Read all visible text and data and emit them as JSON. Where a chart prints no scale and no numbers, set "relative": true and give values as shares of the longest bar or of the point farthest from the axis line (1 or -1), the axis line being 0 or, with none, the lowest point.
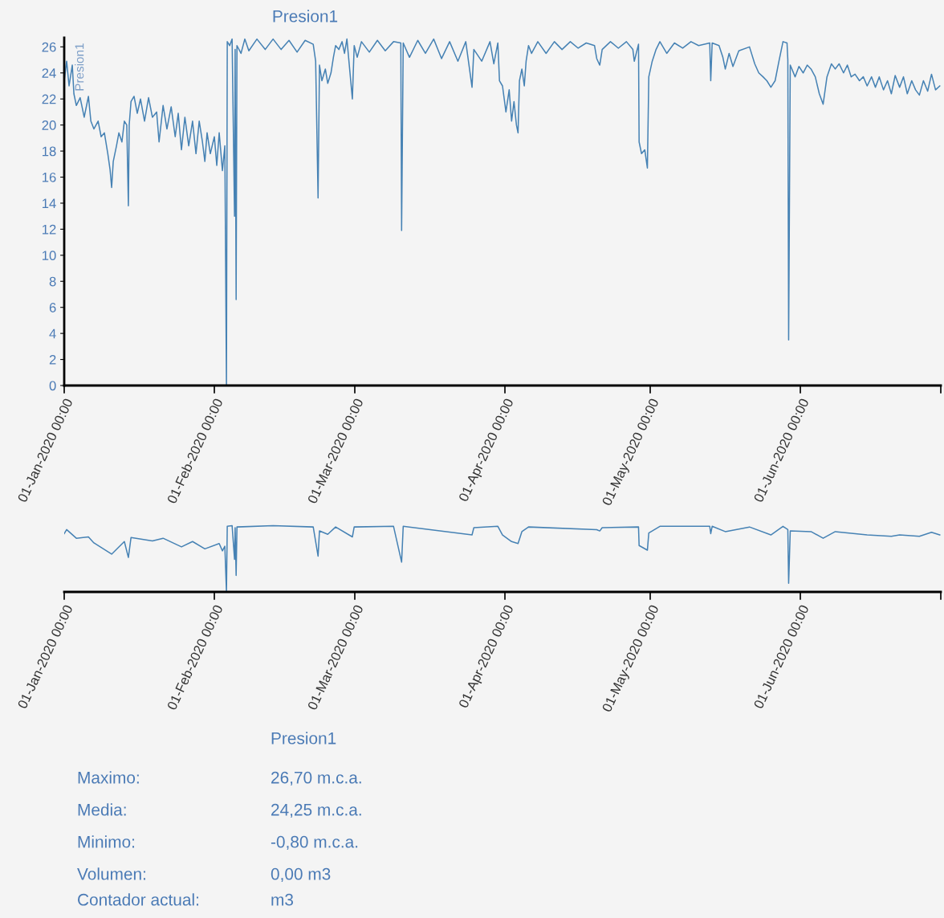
{
  "chart_data": [
    {
      "type": "line",
      "title": "Presion1",
      "ylabel": "Presion1",
      "grid": false,
      "legend": false,
      "marker": "none",
      "line_style": "solid",
      "xlim": [
        "2020-01-01",
        "2020-06-30"
      ],
      "ylim": [
        0,
        26.7
      ],
      "xticks": [
        {
          "value": "2020-01-01",
          "label": "01-Jan-2020 00:00"
        },
        {
          "value": "2020-02-01",
          "label": "01-Feb-2020 00:00"
        },
        {
          "value": "2020-03-01",
          "label": "01-Mar-2020 00:00"
        },
        {
          "value": "2020-04-01",
          "label": "01-Apr-2020 00:00"
        },
        {
          "value": "2020-05-01",
          "label": "01-May-2020 00:00"
        },
        {
          "value": "2020-06-01",
          "label": "01-Jun-2020 00:00"
        },
        {
          "value": "2020-06-30",
          "label": null
        }
      ],
      "yticks": [
        0,
        2,
        4,
        6,
        8,
        10,
        12,
        14,
        16,
        18,
        20,
        22,
        24,
        26
      ],
      "series": [
        {
          "color": "#4682b4",
          "x": [
            "2020-01-01T00:00",
            "2020-01-01T12:00",
            "2020-01-02T00:00",
            "2020-01-02T16:00",
            "2020-01-03T00:00",
            "2020-01-03T12:00",
            "2020-01-04T07:00",
            "2020-01-05T03:00",
            "2020-01-06T00:00",
            "2020-01-06T12:00",
            "2020-01-07T03:00",
            "2020-01-08T00:00",
            "2020-01-08T15:00",
            "2020-01-09T07:00",
            "2020-01-10T00:00",
            "2020-01-10T11:00",
            "2020-01-10T19:00",
            "2020-01-11T03:00",
            "2020-01-11T19:00",
            "2020-01-12T07:00",
            "2020-01-12T22:00",
            "2020-01-13T10:00",
            "2020-01-13T22:00",
            "2020-01-14T06:00",
            "2020-01-14T10:00",
            "2020-01-14T19:00",
            "2020-01-15T10:00",
            "2020-01-16T02:00",
            "2020-01-16T18:00",
            "2020-01-17T14:00",
            "2020-01-18T10:00",
            "2020-01-19T05:00",
            "2020-01-20T02:00",
            "2020-01-20T14:00",
            "2020-01-21T10:00",
            "2020-01-22T05:00",
            "2020-01-23T02:00",
            "2020-01-23T22:00",
            "2020-01-24T13:00",
            "2020-01-25T05:00",
            "2020-01-25T22:00",
            "2020-01-26T17:00",
            "2020-01-27T12:00",
            "2020-01-28T05:00",
            "2020-01-28T21:00",
            "2020-01-29T13:00",
            "2020-01-30T01:00",
            "2020-01-30T12:00",
            "2020-01-31T04:00",
            "2020-02-01T00:00",
            "2020-02-01T12:00",
            "2020-02-02T00:00",
            "2020-02-02T16:00",
            "2020-02-03T04:00",
            "2020-02-03T12:00",
            "2020-02-03T16:00",
            "2020-02-04T04:00",
            "2020-02-04T16:00",
            "2020-02-05T04:00",
            "2020-02-05T07:00",
            "2020-02-05T12:00",
            "2020-02-05T16:00",
            "2020-02-06T12:00",
            "2020-02-07T07:00",
            "2020-02-08T03:00",
            "2020-02-09T19:00",
            "2020-02-11T12:00",
            "2020-02-13T03:00",
            "2020-02-14T19:00",
            "2020-02-16T10:00",
            "2020-02-18T02:00",
            "2020-02-19T18:00",
            "2020-02-21T10:00",
            "2020-02-21T22:00",
            "2020-02-22T10:00",
            "2020-02-22T17:00",
            "2020-02-23T05:00",
            "2020-02-23T22:00",
            "2020-02-24T10:00",
            "2020-02-25T02:00",
            "2020-02-25T14:00",
            "2020-02-26T01:00",
            "2020-02-26T17:00",
            "2020-02-27T09:00",
            "2020-02-27T21:00",
            "2020-02-28T09:00",
            "2020-02-29T12:00",
            "2020-02-29T21:00",
            "2020-03-01T12:00",
            "2020-03-02T09:00",
            "2020-03-04T00:00",
            "2020-03-05T16:00",
            "2020-03-07T07:00",
            "2020-03-09T00:00",
            "2020-03-10T12:00",
            "2020-03-10T16:00",
            "2020-03-11T00:00",
            "2020-03-12T07:00",
            "2020-03-14T00:00",
            "2020-03-15T14:00",
            "2020-03-17T07:00",
            "2020-03-18T22:00",
            "2020-03-20T14:00",
            "2020-03-22T07:00",
            "2020-03-23T22:00",
            "2020-03-25T05:00",
            "2020-03-25T14:00",
            "2020-03-27T05:00",
            "2020-03-28T22:00",
            "2020-03-29T17:00",
            "2020-03-30T13:00",
            "2020-03-30T21:00",
            "2020-03-31T12:00",
            "2020-04-01T05:00",
            "2020-04-01T21:00",
            "2020-04-02T09:00",
            "2020-04-02T21:00",
            "2020-04-03T09:00",
            "2020-04-03T17:00",
            "2020-04-04T00:00",
            "2020-04-04T12:00",
            "2020-04-05T00:00",
            "2020-04-05T09:00",
            "2020-04-05T21:00",
            "2020-04-06T12:00",
            "2020-04-07T19:00",
            "2020-04-09T12:00",
            "2020-04-11T05:00",
            "2020-04-12T19:00",
            "2020-04-14T12:00",
            "2020-04-16T03:00",
            "2020-04-17T19:00",
            "2020-04-19T12:00",
            "2020-04-19T23:00",
            "2020-04-20T14:00",
            "2020-04-21T02:00",
            "2020-04-22T19:00",
            "2020-04-24T10:00",
            "2020-04-26T02:00",
            "2020-04-27T10:00",
            "2020-04-27T17:00",
            "2020-04-28T14:00",
            "2020-04-28T17:00",
            "2020-04-29T05:00",
            "2020-04-29T21:00",
            "2020-04-30T10:00",
            "2020-04-30T17:00",
            "2020-05-01T10:00",
            "2020-05-02T05:00",
            "2020-05-03T00:00",
            "2020-05-04T10:00",
            "2020-05-06T00:00",
            "2020-05-07T17:00",
            "2020-05-09T10:00",
            "2020-05-11T00:00",
            "2020-05-13T07:00",
            "2020-05-13T12:00",
            "2020-05-13T19:00",
            "2020-05-15T05:00",
            "2020-05-16T00:00",
            "2020-05-16T12:00",
            "2020-05-17T07:00",
            "2020-05-18T02:00",
            "2020-05-19T07:00",
            "2020-05-21T12:00",
            "2020-05-22T14:00",
            "2020-05-23T10:00",
            "2020-05-24T07:00",
            "2020-05-25T02:00",
            "2020-05-25T22:00",
            "2020-05-26T19:00",
            "2020-05-27T14:00",
            "2020-05-28T10:00",
            "2020-05-29T06:00",
            "2020-05-29T10:00",
            "2020-05-29T14:00",
            "2020-05-29T22:00",
            "2020-05-30T22:00",
            "2020-05-31T17:00",
            "2020-06-01T14:00",
            "2020-06-02T10:00",
            "2020-06-03T05:00",
            "2020-06-04T02:00",
            "2020-06-04T22:00",
            "2020-06-05T17:00",
            "2020-06-06T12:00",
            "2020-06-07T10:00",
            "2020-06-08T05:00",
            "2020-06-09T00:00",
            "2020-06-09T22:00",
            "2020-06-10T17:00",
            "2020-06-11T12:00",
            "2020-06-12T07:00",
            "2020-06-13T05:00",
            "2020-06-14T00:00",
            "2020-06-14T19:00",
            "2020-06-15T17:00",
            "2020-06-16T12:00",
            "2020-06-17T07:00",
            "2020-06-18T04:00",
            "2020-06-19T00:00",
            "2020-06-19T19:00",
            "2020-06-20T14:00",
            "2020-06-21T12:00",
            "2020-06-22T07:00",
            "2020-06-23T02:00",
            "2020-06-24T00:00",
            "2020-06-24T19:00",
            "2020-06-25T14:00",
            "2020-06-26T10:00",
            "2020-06-27T07:00",
            "2020-06-28T02:00",
            "2020-06-28T22:00",
            "2020-06-29T19:00"
          ],
          "values": [
            23.4,
            24.9,
            23.0,
            24.6,
            22.4,
            21.5,
            22.1,
            20.6,
            22.2,
            20.3,
            19.7,
            20.3,
            19.1,
            19.4,
            17.8,
            16.6,
            15.2,
            17.2,
            18.4,
            19.4,
            18.7,
            20.3,
            20.0,
            13.8,
            20.0,
            21.8,
            22.2,
            20.9,
            22.0,
            20.3,
            22.1,
            20.6,
            21.0,
            18.7,
            21.5,
            19.7,
            21.4,
            19.1,
            20.9,
            18.1,
            20.6,
            18.4,
            20.3,
            17.8,
            20.3,
            18.7,
            17.2,
            19.4,
            17.8,
            19.1,
            16.9,
            19.4,
            16.5,
            18.4,
            0,
            26.4,
            26.1,
            26.6,
            13.0,
            25.8,
            6.6,
            26.1,
            25.5,
            26.6,
            25.7,
            26.6,
            25.8,
            26.6,
            25.8,
            26.5,
            25.6,
            26.5,
            26.2,
            24.9,
            14.4,
            24.6,
            23.4,
            24.3,
            23.2,
            24.0,
            25.2,
            26.1,
            25.8,
            26.4,
            25.5,
            26.6,
            22.0,
            26.1,
            25.2,
            26.4,
            25.6,
            26.5,
            25.7,
            26.4,
            26.3,
            11.9,
            26.3,
            25.2,
            26.5,
            25.5,
            26.6,
            25.1,
            26.4,
            24.9,
            26.4,
            22.9,
            25.8,
            24.9,
            26.4,
            24.7,
            26.3,
            23.4,
            23.0,
            21.0,
            22.7,
            20.3,
            21.8,
            20.0,
            19.4,
            23.4,
            24.3,
            23.0,
            24.9,
            26.1,
            25.5,
            26.4,
            25.5,
            26.4,
            25.8,
            26.4,
            25.9,
            26.3,
            26.1,
            25.1,
            24.6,
            25.8,
            26.4,
            25.9,
            26.4,
            25.8,
            24.9,
            26.2,
            18.7,
            17.8,
            18.1,
            16.7,
            23.7,
            24.9,
            25.8,
            26.4,
            25.5,
            26.3,
            25.9,
            26.4,
            26.1,
            26.3,
            23.4,
            26.3,
            26.1,
            25.2,
            24.3,
            25.5,
            24.5,
            25.7,
            26.0,
            24.7,
            24.0,
            23.7,
            23.4,
            22.9,
            23.4,
            24.9,
            26.4,
            26.3,
            25.0,
            3.5,
            24.6,
            23.7,
            24.5,
            24.0,
            24.6,
            24.3,
            23.7,
            22.4,
            21.6,
            23.7,
            24.7,
            24.3,
            24.7,
            24.0,
            24.6,
            23.7,
            23.9,
            23.4,
            23.7,
            23.0,
            23.7,
            22.9,
            23.7,
            22.7,
            23.4,
            22.4,
            23.8,
            22.9,
            23.7,
            22.4,
            23.4,
            22.7,
            22.3,
            23.4,
            22.6,
            23.9,
            22.7,
            23.0
          ]
        }
      ]
    },
    {
      "type": "line",
      "relative": true,
      "grid": false,
      "legend": false,
      "marker": "none",
      "line_style": "solid",
      "tick_labels": "x",
      "xlim": [
        "2020-01-01",
        "2020-06-30"
      ],
      "xticks": [
        {
          "value": "2020-01-01",
          "label": "01-Jan-2020 00:00"
        },
        {
          "value": "2020-02-01",
          "label": "01-Feb-2020 00:00"
        },
        {
          "value": "2020-03-01",
          "label": "01-Mar-2020 00:00"
        },
        {
          "value": "2020-04-01",
          "label": "01-Apr-2020 00:00"
        },
        {
          "value": "2020-05-01",
          "label": "01-May-2020 00:00"
        },
        {
          "value": "2020-06-01",
          "label": "01-Jun-2020 00:00"
        },
        {
          "value": "2020-06-30",
          "label": null
        }
      ],
      "series": [
        {
          "color": "#4682b4",
          "x": [
            "2020-01-01T00:00",
            "2020-01-01T12:00",
            "2020-01-03T12:00",
            "2020-01-06T00:00",
            "2020-01-07T03:00",
            "2020-01-10T19:00",
            "2020-01-13T10:00",
            "2020-01-14T06:00",
            "2020-01-14T19:00",
            "2020-01-19T05:00",
            "2020-01-21T10:00",
            "2020-01-25T05:00",
            "2020-01-27T12:00",
            "2020-01-30T01:00",
            "2020-02-02T00:00",
            "2020-02-02T16:00",
            "2020-02-03T04:00",
            "2020-02-03T12:00",
            "2020-02-03T16:00",
            "2020-02-04T16:00",
            "2020-02-05T04:00",
            "2020-02-05T07:00",
            "2020-02-05T12:00",
            "2020-02-05T16:00",
            "2020-02-13T03:00",
            "2020-02-21T10:00",
            "2020-02-22T10:00",
            "2020-02-22T17:00",
            "2020-02-24T10:00",
            "2020-02-26T01:00",
            "2020-02-29T12:00",
            "2020-02-29T21:00",
            "2020-03-09T00:00",
            "2020-03-10T16:00",
            "2020-03-11T00:00",
            "2020-03-25T05:00",
            "2020-03-25T14:00",
            "2020-03-30T13:00",
            "2020-03-31T12:00",
            "2020-04-02T09:00",
            "2020-04-03T17:00",
            "2020-04-04T12:00",
            "2020-04-05T21:00",
            "2020-04-19T23:00",
            "2020-04-20T14:00",
            "2020-04-21T02:00",
            "2020-04-28T14:00",
            "2020-04-28T17:00",
            "2020-04-30T10:00",
            "2020-04-30T17:00",
            "2020-05-03T00:00",
            "2020-05-13T07:00",
            "2020-05-13T12:00",
            "2020-05-13T19:00",
            "2020-05-16T12:00",
            "2020-05-21T12:00",
            "2020-05-25T22:00",
            "2020-05-28T10:00",
            "2020-05-29T10:00",
            "2020-05-29T14:00",
            "2020-05-29T22:00",
            "2020-06-03T05:00",
            "2020-06-05T17:00",
            "2020-06-08T05:00",
            "2020-06-14T19:00",
            "2020-06-19T19:00",
            "2020-06-21T12:00",
            "2020-06-25T14:00",
            "2020-06-28T02:00",
            "2020-06-29T19:00"
          ],
          "values": [
            0.88,
            0.94,
            0.81,
            0.83,
            0.74,
            0.57,
            0.76,
            0.52,
            0.82,
            0.77,
            0.81,
            0.68,
            0.76,
            0.65,
            0.73,
            0.62,
            0.69,
            0,
            0.99,
            1,
            0.49,
            0.97,
            0.25,
            0.98,
            1,
            0.98,
            0.54,
            0.92,
            0.87,
            0.98,
            0.83,
            0.98,
            0.99,
            0.45,
            0.99,
            0.86,
            0.97,
            0.99,
            0.86,
            0.76,
            0.73,
            0.91,
            0.98,
            0.94,
            0.92,
            0.97,
            0.98,
            0.7,
            0.63,
            0.89,
            0.99,
            0.99,
            0.88,
            0.99,
            0.91,
            0.98,
            0.86,
            0.99,
            0.94,
            0.13,
            0.92,
            0.91,
            0.81,
            0.91,
            0.86,
            0.84,
            0.86,
            0.84,
            0.9,
            0.86
          ]
        }
      ]
    },
    {
      "type": "other",
      "title": "Presion1",
      "annotations": [
        "Maximo:",
        "26,70 m.c.a.",
        "Media:",
        "24,25 m.c.a.",
        "Minimo:",
        "-0,80 m.c.a.",
        "Volumen:",
        "0,00 m3",
        "Contador actual:",
        "m3"
      ]
    }
  ]
}
